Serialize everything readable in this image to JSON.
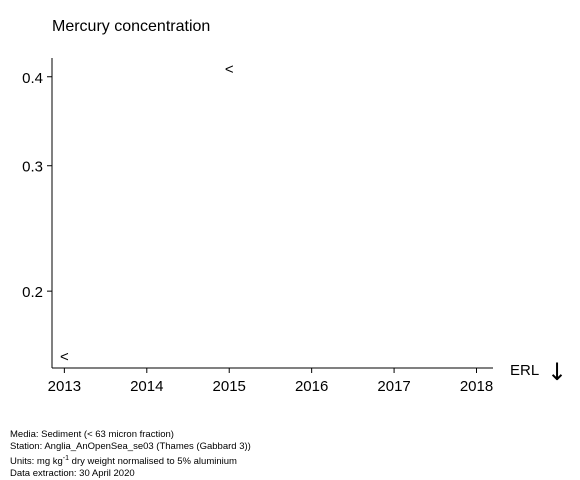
{
  "chart_data": {
    "type": "scatter",
    "title": "Mercury concentration",
    "xlabel": "",
    "ylabel": "",
    "x_ticks": [
      "2013",
      "2014",
      "2015",
      "2016",
      "2017",
      "2018"
    ],
    "y_ticks": [
      "0.2",
      "0.3",
      "0.4"
    ],
    "xlim": [
      2012.85,
      2018.2
    ],
    "ylim": [
      "log",
      0.156,
      0.425
    ],
    "grid": false,
    "points": [
      {
        "x": 2015,
        "y": 0.41,
        "marker": "<"
      },
      {
        "x": 2013,
        "y": 0.162,
        "marker": "<"
      }
    ],
    "reference_label": "ERL",
    "reference_arrow": "↓"
  },
  "footer": {
    "media": "Media: Sediment (< 63 micron fraction)",
    "station": "Station: Anglia_AnOpenSea_se03 (Thames (Gabbard 3))",
    "units_prefix": "Units:  mg kg",
    "units_sup": "-1",
    "units_suffix": " dry weight normalised to 5% aluminium",
    "extraction": "Data extraction: 30 April 2020"
  }
}
